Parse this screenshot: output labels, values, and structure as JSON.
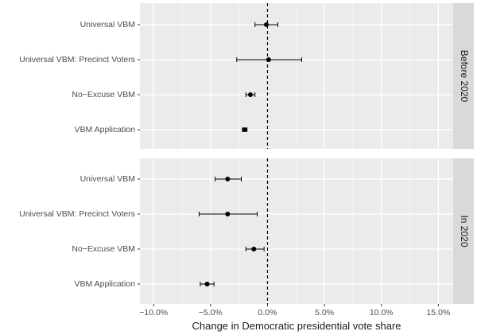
{
  "chart_data": {
    "type": "scatter",
    "subtype": "coefficient-plot-with-error-bars",
    "xlabel": "Change in Democratic presidential vote share",
    "x_ticks": [
      "−10.0%",
      "−5.0%",
      "0.0%",
      "5.0%",
      "10.0%",
      "15.0%"
    ],
    "x_tick_values": [
      -10,
      -5,
      0,
      5,
      10,
      15
    ],
    "xlim": [
      -11.2,
      16.3
    ],
    "reference_line": {
      "x": 0,
      "style": "dashed"
    },
    "grid": true,
    "legend": "none",
    "colors": {
      "panel": "#ebebeb",
      "strip": "#d9d9d9",
      "grid": "#ffffff",
      "point": "#000000"
    },
    "categories": [
      "Universal VBM",
      "Universal VBM: Precinct Voters",
      "No−Excuse VBM",
      "VBM Application"
    ],
    "panels": [
      {
        "strip": "Before 2020",
        "points": [
          {
            "label": "Universal VBM",
            "estimate": -0.1,
            "low": -1.1,
            "high": 0.9
          },
          {
            "label": "Universal VBM: Precinct Voters",
            "estimate": 0.1,
            "low": -2.7,
            "high": 3.0
          },
          {
            "label": "No−Excuse VBM",
            "estimate": -1.5,
            "low": -1.9,
            "high": -1.1
          },
          {
            "label": "VBM Application",
            "estimate": -2.0,
            "low": -2.2,
            "high": -1.8
          }
        ]
      },
      {
        "strip": "In 2020",
        "points": [
          {
            "label": "Universal VBM",
            "estimate": -3.5,
            "low": -4.6,
            "high": -2.3
          },
          {
            "label": "Universal VBM: Precinct Voters",
            "estimate": -3.5,
            "low": -6.0,
            "high": -0.9
          },
          {
            "label": "No−Excuse VBM",
            "estimate": -1.2,
            "low": -1.9,
            "high": -0.3
          },
          {
            "label": "VBM Application",
            "estimate": -5.3,
            "low": -5.9,
            "high": -4.7
          }
        ]
      }
    ]
  }
}
